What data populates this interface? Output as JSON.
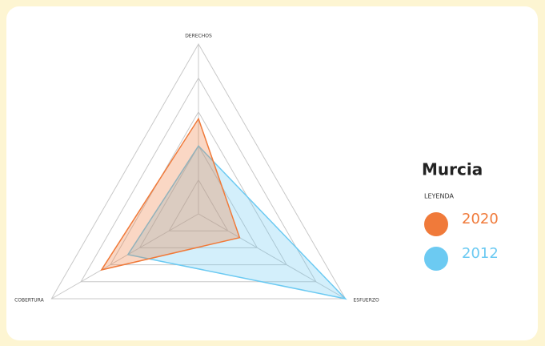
{
  "chart_data": {
    "type": "radar",
    "title": "Murcia",
    "legend_title": "LEYENDA",
    "axes": [
      "DERECHOS",
      "ESFUERZO",
      "COBERTURA"
    ],
    "rlim": [
      0,
      5
    ],
    "rticks": [
      1,
      2,
      3,
      4,
      5
    ],
    "grid": true,
    "series": [
      {
        "name": "2020",
        "color": "#f07a3a",
        "values": [
          2.8,
          1.4,
          3.3
        ]
      },
      {
        "name": "2012",
        "color": "#6ccaf2",
        "values": [
          2.0,
          5.0,
          2.4
        ]
      }
    ]
  }
}
